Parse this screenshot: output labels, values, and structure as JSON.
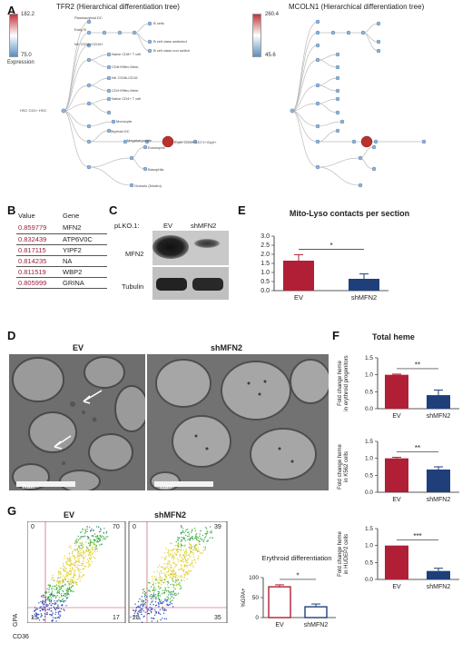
{
  "panels": {
    "A": "A",
    "B": "B",
    "C": "C",
    "D": "D",
    "E": "E",
    "F": "F",
    "G": "G"
  },
  "panelA": {
    "left_title": "TFR2 (Hierarchical differentiation tree)",
    "right_title": "MCOLN1 (Hierarchical differentiation tree)",
    "legend_label": "Expression",
    "left_scale": {
      "max": "182.2",
      "min": "75.0"
    },
    "right_scale": {
      "max": "260.4",
      "min": "45.6"
    },
    "root_label": "HSC CD1+ HSC",
    "node_labels": [
      "Plasmacytoid DC",
      "Early B",
      "Pro-B",
      "Pre-B",
      "B cells",
      "B cell class switched",
      "B cell class non switch",
      "NK CD56+CD16+",
      "Naive CD8+ T cell",
      "CD8+Effec.Mem.",
      "NK CD56-CD16",
      "CD4+Effec.Mem.",
      "Naive CD4+ T cell",
      "Monocyte",
      "Myeloid DC",
      "Megakaryocyte",
      "Eryth CD34+CD71+GlyA+",
      "Eosinophil",
      "Basophils",
      "Granulo (Neutro)"
    ]
  },
  "panelB": {
    "headers": [
      "Value",
      "Gene"
    ],
    "rows": [
      {
        "value": "0.859779",
        "gene": "MFN2"
      },
      {
        "value": "0.832439",
        "gene": "ATP6V0C"
      },
      {
        "value": "0.817115",
        "gene": "YIPF2"
      },
      {
        "value": "0.814235",
        "gene": "NA"
      },
      {
        "value": "0.811519",
        "gene": "WBP2"
      },
      {
        "value": "0.805999",
        "gene": "GRINA"
      }
    ]
  },
  "panelC": {
    "vector_label": "pLKO.1:",
    "lanes": [
      "EV",
      "shMFN2"
    ],
    "bands": [
      "MFN2",
      "Tubulin"
    ]
  },
  "panelD": {
    "left_label": "EV",
    "right_label": "shMFN2",
    "scale_left": "2um",
    "scale_right": "2um"
  },
  "panelG": {
    "left_label": "EV",
    "right_label": "shMFN2",
    "left_quadrants": {
      "tl": "0",
      "tr": "70",
      "bl": "13",
      "br": "17"
    },
    "right_quadrants": {
      "tl": "0",
      "tr": "39",
      "bl": "25",
      "br": "35"
    },
    "y_axis": "GPA",
    "x_axis": "CD36"
  },
  "chart_data": [
    {
      "type": "bar",
      "title": "Mito-Lyso contacts per section",
      "categories": [
        "EV",
        "shMFN2"
      ],
      "values": [
        1.65,
        0.65
      ],
      "errors": [
        0.33,
        0.27
      ],
      "ylim": [
        0,
        3.0
      ],
      "yticks": [
        "0.0",
        "0.5",
        "1.0",
        "1.5",
        "2.0",
        "2.5",
        "3.0"
      ],
      "significance": "*",
      "colors": [
        "#b01f35",
        "#1f3f7a"
      ]
    },
    {
      "type": "bar",
      "title": "Total heme",
      "ylabel": "Fold change heme in erythroid progenitors",
      "categories": [
        "EV",
        "shMFN2"
      ],
      "values": [
        1.0,
        0.4
      ],
      "errors": [
        0.02,
        0.15
      ],
      "ylim": [
        0,
        1.5
      ],
      "yticks": [
        "0.0",
        "0.5",
        "1.0",
        "1.5"
      ],
      "significance": "**",
      "colors": [
        "#b01f35",
        "#1f3f7a"
      ]
    },
    {
      "type": "bar",
      "ylabel": "Fold change heme in K562 cells",
      "categories": [
        "EV",
        "shMFN2"
      ],
      "values": [
        1.0,
        0.67
      ],
      "errors": [
        0.03,
        0.08
      ],
      "ylim": [
        0,
        1.5
      ],
      "yticks": [
        "0.0",
        "0.5",
        "1.0",
        "1.5"
      ],
      "significance": "**",
      "colors": [
        "#b01f35",
        "#1f3f7a"
      ]
    },
    {
      "type": "bar",
      "ylabel": "Fold change heme in HUDEP2 cells",
      "categories": [
        "EV",
        "shMFN2"
      ],
      "values": [
        1.0,
        0.25
      ],
      "errors": [
        0.0,
        0.08
      ],
      "ylim": [
        0,
        1.5
      ],
      "yticks": [
        "0.0",
        "0.5",
        "1.0",
        "1.5"
      ],
      "significance": "***",
      "colors": [
        "#b01f35",
        "#1f3f7a"
      ]
    },
    {
      "type": "bar",
      "title": "Erythroid differentiation",
      "ylabel": "%GPA+",
      "categories": [
        "EV",
        "shMFN2"
      ],
      "values": [
        77,
        27
      ],
      "errors": [
        5,
        7
      ],
      "ylim": [
        0,
        100
      ],
      "yticks": [
        "0",
        "50",
        "100"
      ],
      "significance": "*",
      "colors": [
        "#b01f35",
        "#1f3f7a"
      ],
      "style": "outline"
    }
  ]
}
